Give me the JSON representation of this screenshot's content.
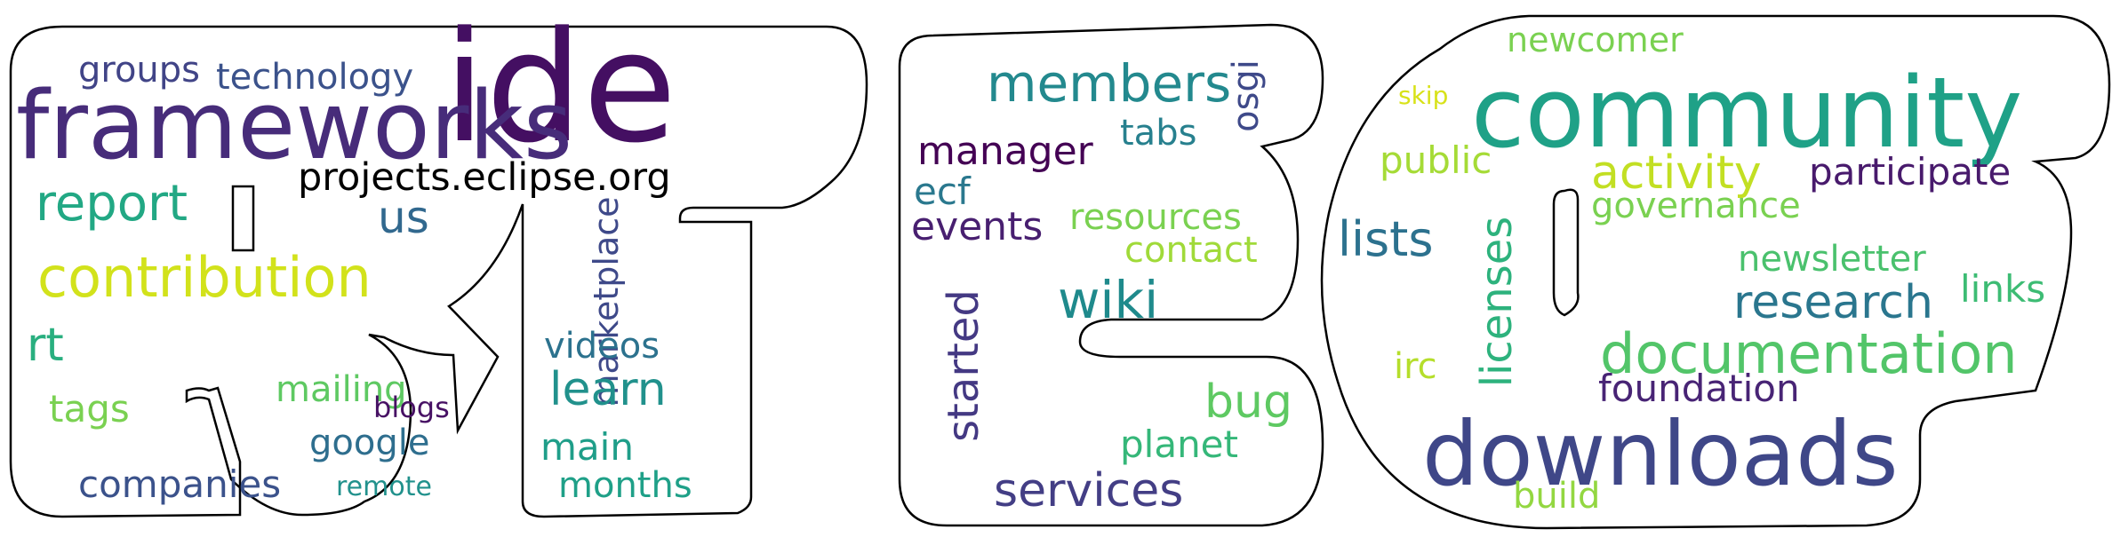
{
  "words": [
    {
      "id": "ide",
      "text": "ide",
      "color": "#440f62"
    },
    {
      "id": "frameworks",
      "text": "frameworks",
      "color": "#472c7a"
    },
    {
      "id": "groups",
      "text": "groups",
      "color": "#414487"
    },
    {
      "id": "technology",
      "text": "technology",
      "color": "#3b528b"
    },
    {
      "id": "projects-eclipse-org",
      "text": "projects.eclipse.org",
      "color": "#355f8d"
    },
    {
      "id": "report",
      "text": "report",
      "color": "#22a884"
    },
    {
      "id": "us",
      "text": "us",
      "color": "#31688e"
    },
    {
      "id": "contribution",
      "text": "contribution",
      "color": "#d2e21b"
    },
    {
      "id": "rt",
      "text": "rt",
      "color": "#3e4989"
    },
    {
      "id": "marketplace",
      "text": "marketplace",
      "color": "#29af7f"
    },
    {
      "id": "videos",
      "text": "videos",
      "color": "#2c728e"
    },
    {
      "id": "mailing",
      "text": "mailing",
      "color": "#21918c"
    },
    {
      "id": "tags",
      "text": "tags",
      "color": "#5ec962"
    },
    {
      "id": "blogs",
      "text": "blogs",
      "color": "#7ad151"
    },
    {
      "id": "google",
      "text": "google",
      "color": "#471164"
    },
    {
      "id": "learn",
      "text": "learn",
      "color": "#2e6e8e"
    },
    {
      "id": "companies",
      "text": "companies",
      "color": "#1f9e89"
    },
    {
      "id": "remote",
      "text": "remote",
      "color": "#3b528b"
    },
    {
      "id": "main",
      "text": "main",
      "color": "#21918c"
    },
    {
      "id": "months",
      "text": "months",
      "color": "#1fa088"
    },
    {
      "id": "members",
      "text": "members",
      "color": "#23898e"
    },
    {
      "id": "osgi",
      "text": "osgi",
      "color": "#3e4989"
    },
    {
      "id": "tabs",
      "text": "tabs",
      "color": "#27808e"
    },
    {
      "id": "manager",
      "text": "manager",
      "color": "#440154"
    },
    {
      "id": "ecf",
      "text": "ecf",
      "color": "#2a788e"
    },
    {
      "id": "events",
      "text": "events",
      "color": "#481f70"
    },
    {
      "id": "resources",
      "text": "resources",
      "color": "#7ad151"
    },
    {
      "id": "contact",
      "text": "contact",
      "color": "#a0da39"
    },
    {
      "id": "wiki",
      "text": "wiki",
      "color": "#1f8a8c"
    },
    {
      "id": "started",
      "text": "started",
      "color": "#443983"
    },
    {
      "id": "bug",
      "text": "bug",
      "color": "#5ec962"
    },
    {
      "id": "planet",
      "text": "planet",
      "color": "#35b779"
    },
    {
      "id": "services",
      "text": "services",
      "color": "#433e85"
    },
    {
      "id": "newcomer",
      "text": "newcomer",
      "color": "#7ad151"
    },
    {
      "id": "skip",
      "text": "skip",
      "color": "#d8e219"
    },
    {
      "id": "community",
      "text": "community",
      "color": "#1fa187"
    },
    {
      "id": "public",
      "text": "public",
      "color": "#a5db36"
    },
    {
      "id": "activity",
      "text": "activity",
      "color": "#c2df23"
    },
    {
      "id": "participate",
      "text": "participate",
      "color": "#481a6c"
    },
    {
      "id": "lists",
      "text": "lists",
      "color": "#2c718e"
    },
    {
      "id": "licenses",
      "text": "licenses",
      "color": "#2db27d"
    },
    {
      "id": "governance",
      "text": "governance",
      "color": "#7ad151"
    },
    {
      "id": "newsletter",
      "text": "newsletter",
      "color": "#4ac16d"
    },
    {
      "id": "links",
      "text": "links",
      "color": "#3dbc74"
    },
    {
      "id": "research",
      "text": "research",
      "color": "#2a768e"
    },
    {
      "id": "documentation",
      "text": "documentation",
      "color": "#52c569"
    },
    {
      "id": "irc",
      "text": "irc",
      "color": "#b5de2b"
    },
    {
      "id": "foundation",
      "text": "foundation",
      "color": "#482475"
    },
    {
      "id": "downloads",
      "text": "downloads",
      "color": "#3f4788"
    },
    {
      "id": "build",
      "text": "build",
      "color": "#93d741"
    }
  ]
}
